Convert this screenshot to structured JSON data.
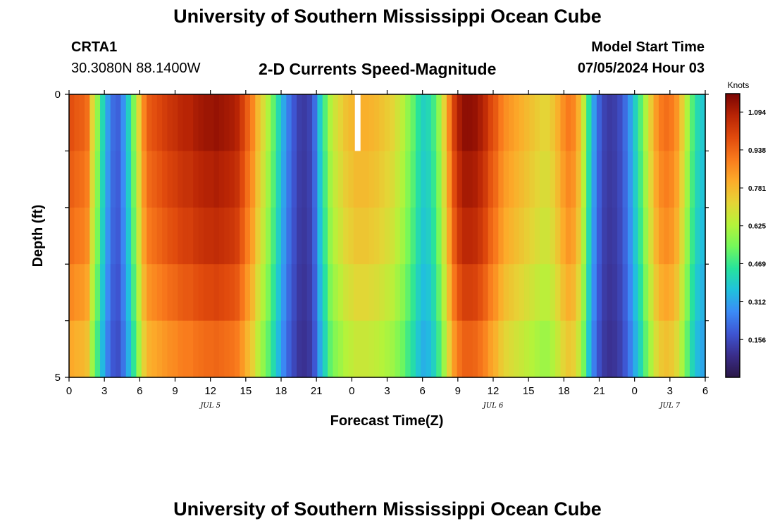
{
  "page": {
    "title_top": "University of Southern Mississippi Ocean Cube",
    "title_bottom": "University of Southern Mississippi Ocean Cube",
    "station_name": "CRTA1",
    "station_coords": "30.3080N  88.1400W",
    "plot_title": "2-D Currents Speed-Magnitude",
    "model_start_label": "Model Start Time",
    "model_start_value": "07/05/2024 Hour 03"
  },
  "chart_data": {
    "type": "heatmap",
    "title": "2-D Currents Speed-Magnitude",
    "xlabel": "Forecast Time(Z)",
    "ylabel": "Depth (ft)",
    "units": "Knots",
    "x_start_hour": 0,
    "x_end_hour": 54,
    "x_ticks": [
      {
        "hour": 0,
        "label": "0"
      },
      {
        "hour": 3,
        "label": "3"
      },
      {
        "hour": 6,
        "label": "6"
      },
      {
        "hour": 9,
        "label": "9"
      },
      {
        "hour": 12,
        "label": "12"
      },
      {
        "hour": 15,
        "label": "15"
      },
      {
        "hour": 18,
        "label": "18"
      },
      {
        "hour": 21,
        "label": "21"
      },
      {
        "hour": 24,
        "label": "0"
      },
      {
        "hour": 27,
        "label": "3"
      },
      {
        "hour": 30,
        "label": "6"
      },
      {
        "hour": 33,
        "label": "9"
      },
      {
        "hour": 36,
        "label": "12"
      },
      {
        "hour": 39,
        "label": "15"
      },
      {
        "hour": 42,
        "label": "18"
      },
      {
        "hour": 45,
        "label": "21"
      },
      {
        "hour": 48,
        "label": "0"
      },
      {
        "hour": 51,
        "label": "3"
      },
      {
        "hour": 54,
        "label": "6"
      }
    ],
    "day_labels": [
      {
        "hour": 12,
        "label": "JUL 5"
      },
      {
        "hour": 36,
        "label": "JUL 6"
      },
      {
        "hour": 51,
        "label": "JUL 7"
      }
    ],
    "y_range": [
      0,
      5
    ],
    "y_tick_labels": [
      {
        "depth": 0,
        "label": "0"
      },
      {
        "depth": 5,
        "label": "5"
      }
    ],
    "depth_levels": 5,
    "hourly_magnitude": [
      0.98,
      0.96,
      0.95,
      0.92,
      0.72,
      0.58,
      0.42,
      0.3,
      0.22,
      0.2,
      0.28,
      0.4,
      0.55,
      0.72,
      0.88,
      0.96,
      0.98,
      1.0,
      1.02,
      1.04,
      1.05,
      1.07,
      1.08,
      1.08,
      1.1,
      1.11,
      1.12,
      1.12,
      1.13,
      1.12,
      1.11,
      1.1,
      1.08,
      1.02,
      0.95,
      0.88,
      0.78,
      0.7,
      0.62,
      0.52,
      0.42,
      0.32,
      0.24,
      0.18,
      0.13,
      0.12,
      0.14,
      0.22,
      0.38,
      0.5,
      0.62,
      0.68,
      0.72,
      0.76,
      0.78,
      0.8,
      0.8,
      0.8,
      0.79,
      0.78,
      0.76,
      0.74,
      0.72,
      0.68,
      0.64,
      0.58,
      0.52,
      0.45,
      0.4,
      0.42,
      0.48,
      0.58,
      0.72,
      0.88,
      1.02,
      1.1,
      1.14,
      1.14,
      1.13,
      1.1,
      1.06,
      1.0,
      0.96,
      0.9,
      0.86,
      0.84,
      0.82,
      0.8,
      0.78,
      0.76,
      0.74,
      0.72,
      0.72,
      0.75,
      0.8,
      0.86,
      0.9,
      0.88,
      0.8,
      0.65,
      0.45,
      0.3,
      0.2,
      0.14,
      0.12,
      0.13,
      0.16,
      0.22,
      0.3,
      0.4,
      0.5,
      0.62,
      0.74,
      0.84,
      0.9,
      0.92,
      0.9,
      0.85,
      0.74,
      0.62,
      0.5,
      0.42,
      0.38
    ],
    "depth_factors": [
      1.0,
      0.97,
      0.94,
      0.89,
      0.83
    ],
    "colorbar": {
      "min": 0.0,
      "max": 1.17,
      "ticks": [
        "0.156",
        "0.312",
        "0.469",
        "0.625",
        "0.781",
        "0.938",
        "1.094"
      ],
      "colors": [
        "#2a1747",
        "#3a2d8a",
        "#3e55d2",
        "#3b8bf6",
        "#20c1dd",
        "#27e39c",
        "#74f85a",
        "#b5f33a",
        "#e5d436",
        "#fcab2a",
        "#f97a1c",
        "#e04a0d",
        "#b82405",
        "#7a0403"
      ]
    },
    "missing_value_marker": {
      "hour": 24.5,
      "depth_level": 0
    }
  }
}
